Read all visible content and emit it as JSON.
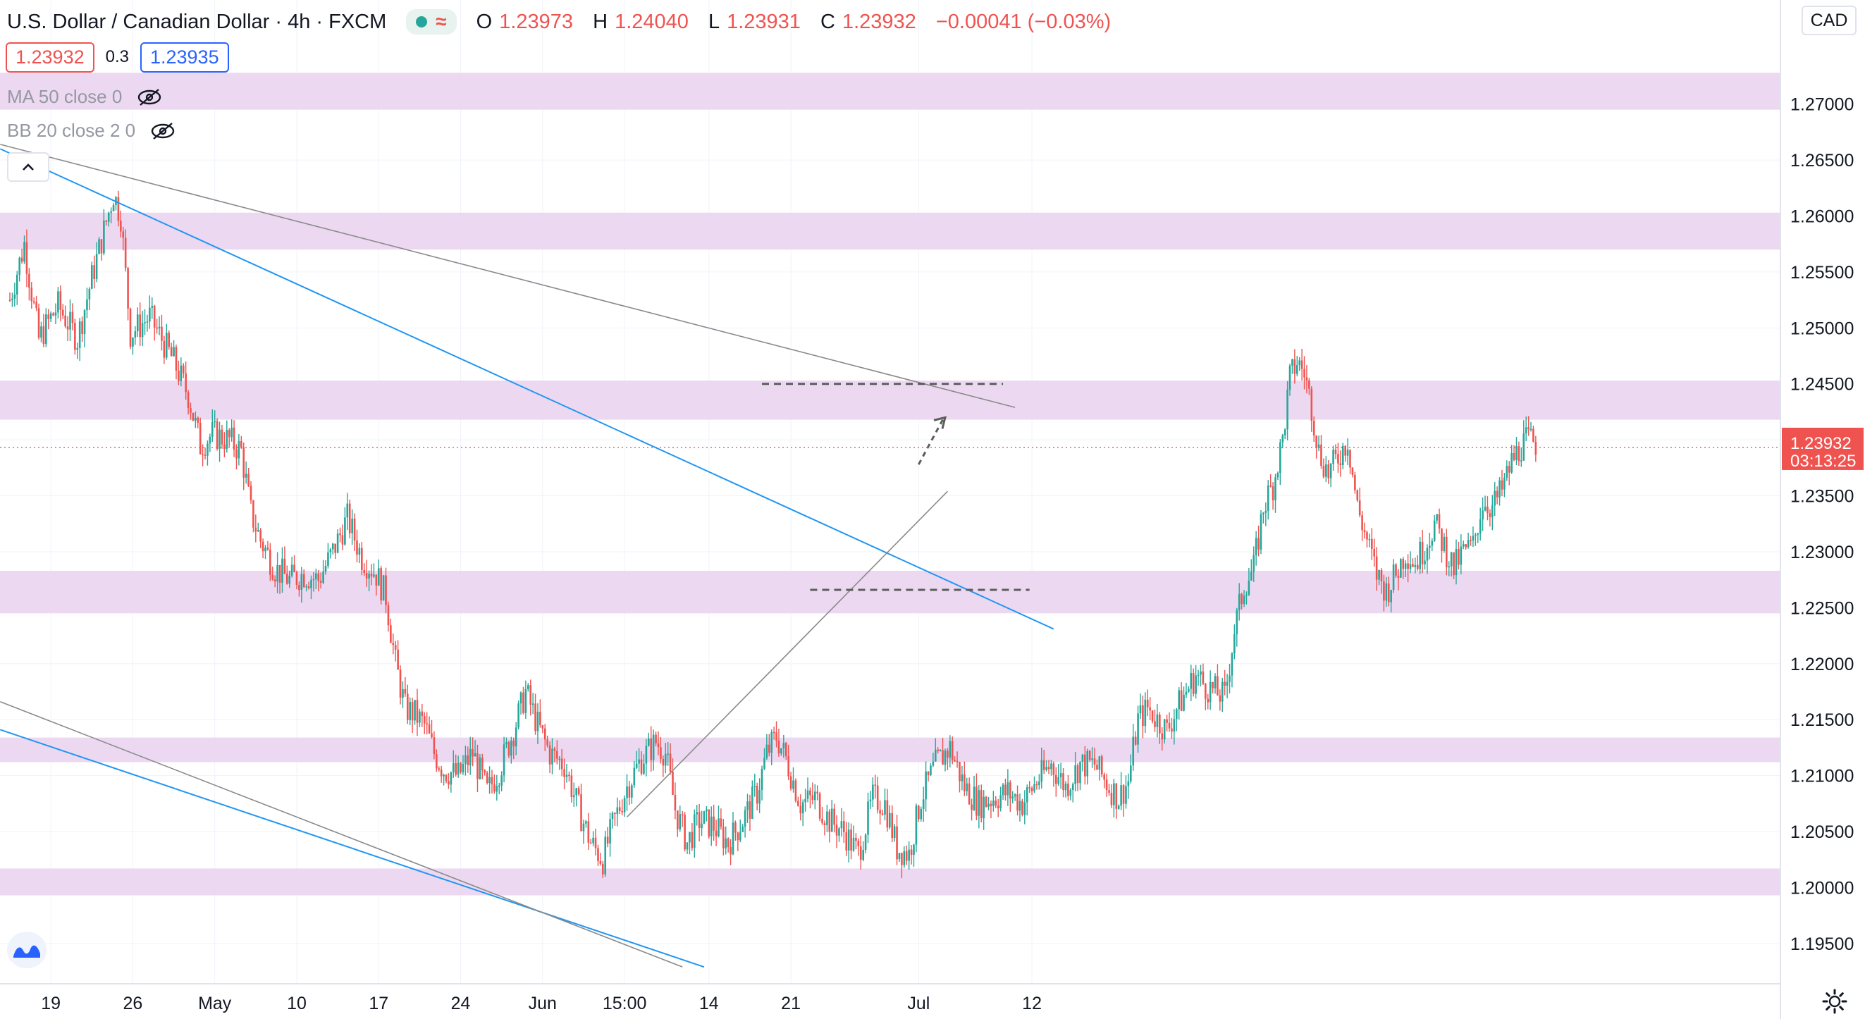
{
  "header": {
    "symbol": "U.S. Dollar / Canadian Dollar · 4h · FXCM",
    "ohlc": [
      {
        "k": "O",
        "v": "1.23973"
      },
      {
        "k": "H",
        "v": "1.24040"
      },
      {
        "k": "L",
        "v": "1.23931"
      },
      {
        "k": "C",
        "v": "1.23932"
      }
    ],
    "change": "−0.00041 (−0.03%)",
    "bid": "1.23932",
    "spread": "0.3",
    "ask": "1.23935"
  },
  "indicators": [
    {
      "label": "MA 50 close 0"
    },
    {
      "label": "BB 20 close 2 0"
    }
  ],
  "currency_label": "CAD",
  "colors": {
    "up": "#26a69a",
    "down": "#ef5350",
    "zone": "#e9d2ef",
    "blue_line": "#2196f3",
    "gray_line": "#8a8a8a",
    "dashed": "#5d5d5d"
  },
  "chart_data": {
    "type": "candlestick",
    "timeframe": "4h",
    "y_range": [
      1.1914,
      1.2793
    ],
    "price_ticks": [
      "1.19500",
      "1.20000",
      "1.20500",
      "1.21000",
      "1.21500",
      "1.22000",
      "1.22500",
      "1.23000",
      "1.23500",
      "1.24000",
      "1.24500",
      "1.25000",
      "1.25500",
      "1.26000",
      "1.26500",
      "1.27000"
    ],
    "time_ticks": [
      "19",
      "26",
      "May",
      "10",
      "17",
      "24",
      "Jun",
      "15:00",
      "14",
      "21",
      "Jul",
      "12"
    ],
    "last_price": {
      "price": 1.23932,
      "label": "1.23932",
      "countdown": "03:13:25"
    },
    "zones": [
      [
        1.2695,
        1.2728
      ],
      [
        1.257,
        1.2603
      ],
      [
        1.2418,
        1.2453
      ],
      [
        1.2245,
        1.2283
      ],
      [
        1.2112,
        1.2134
      ],
      [
        1.1993,
        1.2017
      ]
    ],
    "price_path": [
      [
        0,
        1.2525
      ],
      [
        6,
        1.2575
      ],
      [
        12,
        1.249
      ],
      [
        20,
        1.252
      ],
      [
        28,
        1.249
      ],
      [
        34,
        1.2545
      ],
      [
        40,
        1.2595
      ],
      [
        43,
        1.262
      ],
      [
        46,
        1.26
      ],
      [
        50,
        1.2495
      ],
      [
        58,
        1.251
      ],
      [
        68,
        1.247
      ],
      [
        74,
        1.244
      ],
      [
        79,
        1.2395
      ],
      [
        84,
        1.2405
      ],
      [
        91,
        1.24
      ],
      [
        96,
        1.239
      ],
      [
        100,
        1.2335
      ],
      [
        104,
        1.231
      ],
      [
        110,
        1.2285
      ],
      [
        116,
        1.2275
      ],
      [
        122,
        1.228
      ],
      [
        128,
        1.2275
      ],
      [
        134,
        1.23
      ],
      [
        140,
        1.233
      ],
      [
        146,
        1.2295
      ],
      [
        152,
        1.228
      ],
      [
        156,
        1.226
      ],
      [
        160,
        1.22
      ],
      [
        164,
        1.216
      ],
      [
        168,
        1.2155
      ],
      [
        172,
        1.2145
      ],
      [
        176,
        1.212
      ],
      [
        180,
        1.2105
      ],
      [
        186,
        1.21
      ],
      [
        192,
        1.212
      ],
      [
        198,
        1.2085
      ],
      [
        203,
        1.2105
      ],
      [
        209,
        1.214
      ],
      [
        214,
        1.2175
      ],
      [
        219,
        1.2145
      ],
      [
        224,
        1.212
      ],
      [
        230,
        1.211
      ],
      [
        236,
        1.207
      ],
      [
        241,
        1.204
      ],
      [
        246,
        1.2025
      ],
      [
        250,
        1.2055
      ],
      [
        256,
        1.209
      ],
      [
        262,
        1.2115
      ],
      [
        268,
        1.213
      ],
      [
        272,
        1.212
      ],
      [
        276,
        1.207
      ],
      [
        281,
        1.204
      ],
      [
        286,
        1.206
      ],
      [
        292,
        1.2055
      ],
      [
        298,
        1.204
      ],
      [
        304,
        1.206
      ],
      [
        310,
        1.2085
      ],
      [
        314,
        1.212
      ],
      [
        318,
        1.2135
      ],
      [
        322,
        1.2115
      ],
      [
        328,
        1.2075
      ],
      [
        334,
        1.208
      ],
      [
        340,
        1.206
      ],
      [
        346,
        1.205
      ],
      [
        352,
        1.203
      ],
      [
        358,
        1.208
      ],
      [
        363,
        1.2075
      ],
      [
        368,
        1.2035
      ],
      [
        373,
        1.203
      ],
      [
        378,
        1.208
      ],
      [
        384,
        1.211
      ],
      [
        390,
        1.2125
      ],
      [
        396,
        1.209
      ],
      [
        402,
        1.2075
      ],
      [
        408,
        1.208
      ],
      [
        414,
        1.2085
      ],
      [
        420,
        1.2075
      ],
      [
        426,
        1.2095
      ],
      [
        432,
        1.211
      ],
      [
        438,
        1.209
      ],
      [
        444,
        1.211
      ],
      [
        450,
        1.211
      ],
      [
        456,
        1.209
      ],
      [
        460,
        1.208
      ],
      [
        464,
        1.2095
      ],
      [
        468,
        1.215
      ],
      [
        472,
        1.216
      ],
      [
        476,
        1.215
      ],
      [
        480,
        1.214
      ],
      [
        484,
        1.216
      ],
      [
        488,
        1.2175
      ],
      [
        492,
        1.219
      ],
      [
        496,
        1.218
      ],
      [
        500,
        1.2175
      ],
      [
        504,
        1.217
      ],
      [
        508,
        1.223
      ],
      [
        512,
        1.227
      ],
      [
        516,
        1.2285
      ],
      [
        520,
        1.234
      ],
      [
        524,
        1.236
      ],
      [
        528,
        1.24
      ],
      [
        531,
        1.2455
      ],
      [
        534,
        1.247
      ],
      [
        537,
        1.246
      ],
      [
        540,
        1.243
      ],
      [
        543,
        1.239
      ],
      [
        547,
        1.237
      ],
      [
        551,
        1.2385
      ],
      [
        555,
        1.24
      ],
      [
        559,
        1.234
      ],
      [
        563,
        1.231
      ],
      [
        567,
        1.228
      ],
      [
        571,
        1.2265
      ],
      [
        575,
        1.228
      ],
      [
        579,
        1.23
      ],
      [
        583,
        1.229
      ],
      [
        587,
        1.2305
      ],
      [
        591,
        1.2325
      ],
      [
        595,
        1.2305
      ],
      [
        599,
        1.2285
      ],
      [
        603,
        1.23
      ],
      [
        607,
        1.2305
      ],
      [
        611,
        1.2345
      ],
      [
        615,
        1.234
      ],
      [
        619,
        1.2355
      ],
      [
        623,
        1.238
      ],
      [
        627,
        1.2395
      ],
      [
        630,
        1.24
      ],
      [
        633,
        1.2397
      ]
    ]
  }
}
